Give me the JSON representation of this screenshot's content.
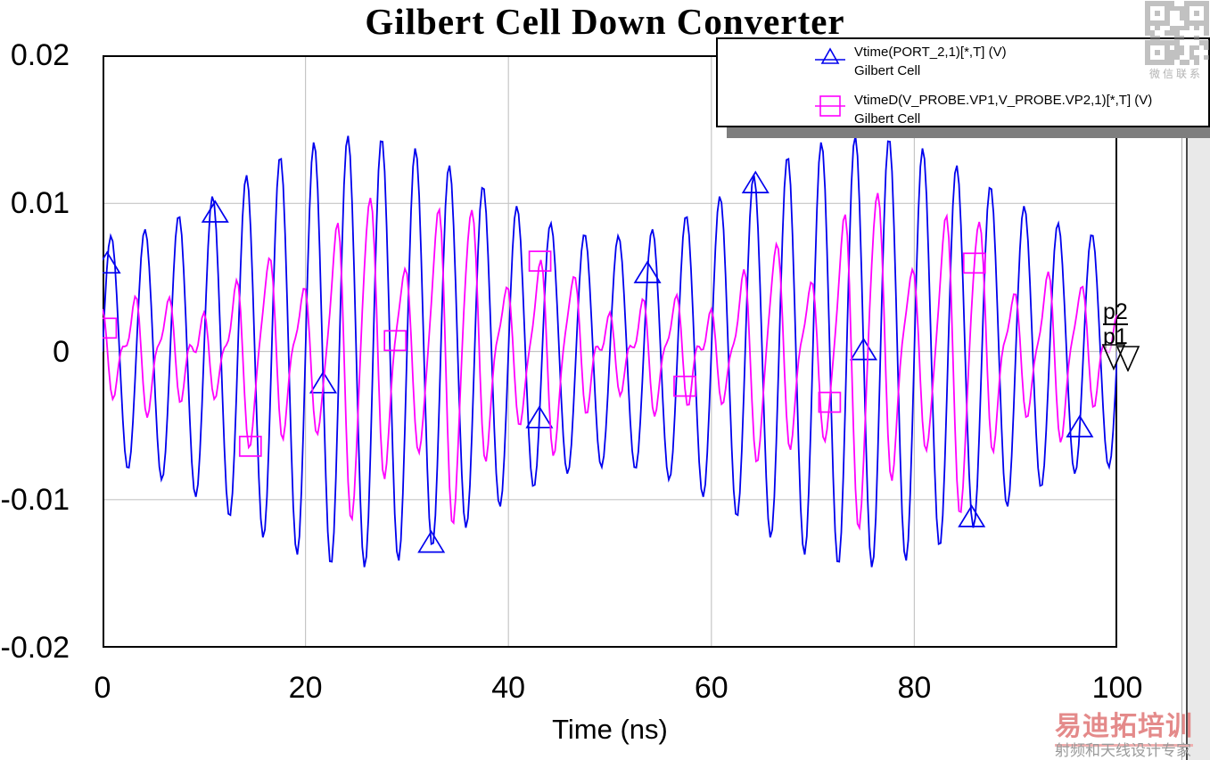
{
  "title": "Gilbert Cell Down Converter",
  "legend": {
    "entries": [
      {
        "label": "Vtime(PORT_2,1)[*,T] (V)",
        "sublabel": "Gilbert Cell",
        "color": "#0000EE",
        "marker": "triangle"
      },
      {
        "label": "VtimeD(V_PROBE.VP1,V_PROBE.VP2,1)[*,T] (V)",
        "sublabel": "Gilbert Cell",
        "color": "#FF00FF",
        "marker": "square"
      }
    ]
  },
  "chart_data": {
    "type": "line",
    "title": "Gilbert Cell Down Converter",
    "xlabel": "Time (ns)",
    "ylabel": "",
    "xlim": [
      0,
      100
    ],
    "ylim": [
      -0.02,
      0.02
    ],
    "xticks": [
      0,
      20,
      40,
      60,
      80,
      100
    ],
    "yticks": [
      -0.02,
      -0.01,
      0,
      0.01,
      0.02
    ],
    "grid": true,
    "grid_color": "#c6c6c6",
    "legend_position": "top-right",
    "end_labels": [
      "p2",
      "p1"
    ],
    "series": [
      {
        "name": "Vtime(PORT_2,1)[*,T] (V)",
        "source": "Gilbert Cell",
        "color": "#0000EE",
        "marker": "triangle",
        "marker_start_ns": 0.45,
        "marker_interval_ns": 10.65,
        "model": {
          "kind": "am_sine",
          "carrier_ghz": 0.3,
          "phase_rad": 0,
          "env_base_v": 0.0078,
          "env_swing_v": 0.0068,
          "env_period_ns": 50,
          "env_t0_ns": 0,
          "peak_max_v": 0.0146,
          "peak_min_v": 0.0078
        }
      },
      {
        "name": "VtimeD(V_PROBE.VP1,V_PROBE.VP2,1)[*,T] (V)",
        "source": "Gilbert Cell",
        "color": "#FF00FF",
        "marker": "square",
        "marker_start_ns": 0.3,
        "marker_interval_ns": 14.27,
        "model": {
          "kind": "mixer_output",
          "carrier_ghz": 0.3,
          "phase_rad": 2.3,
          "env_base_v": 0.0035,
          "env_swing_v": 0.0085,
          "env_period_ns": 48,
          "env_t0_ns": 6,
          "beat_ghz": 0.1,
          "beat_depth": 0.28,
          "beat_t0_ns": 5,
          "ripple_amp_v": 0.0014,
          "ripple_ghz": 0.6,
          "ripple_phase_rad": 1.2,
          "peak_max_v": 0.0124
        }
      }
    ]
  },
  "watermarks": {
    "qr_caption": "微信联系",
    "brand": "易迪拓培训",
    "brand_sub": "射频和天线设计专家"
  }
}
